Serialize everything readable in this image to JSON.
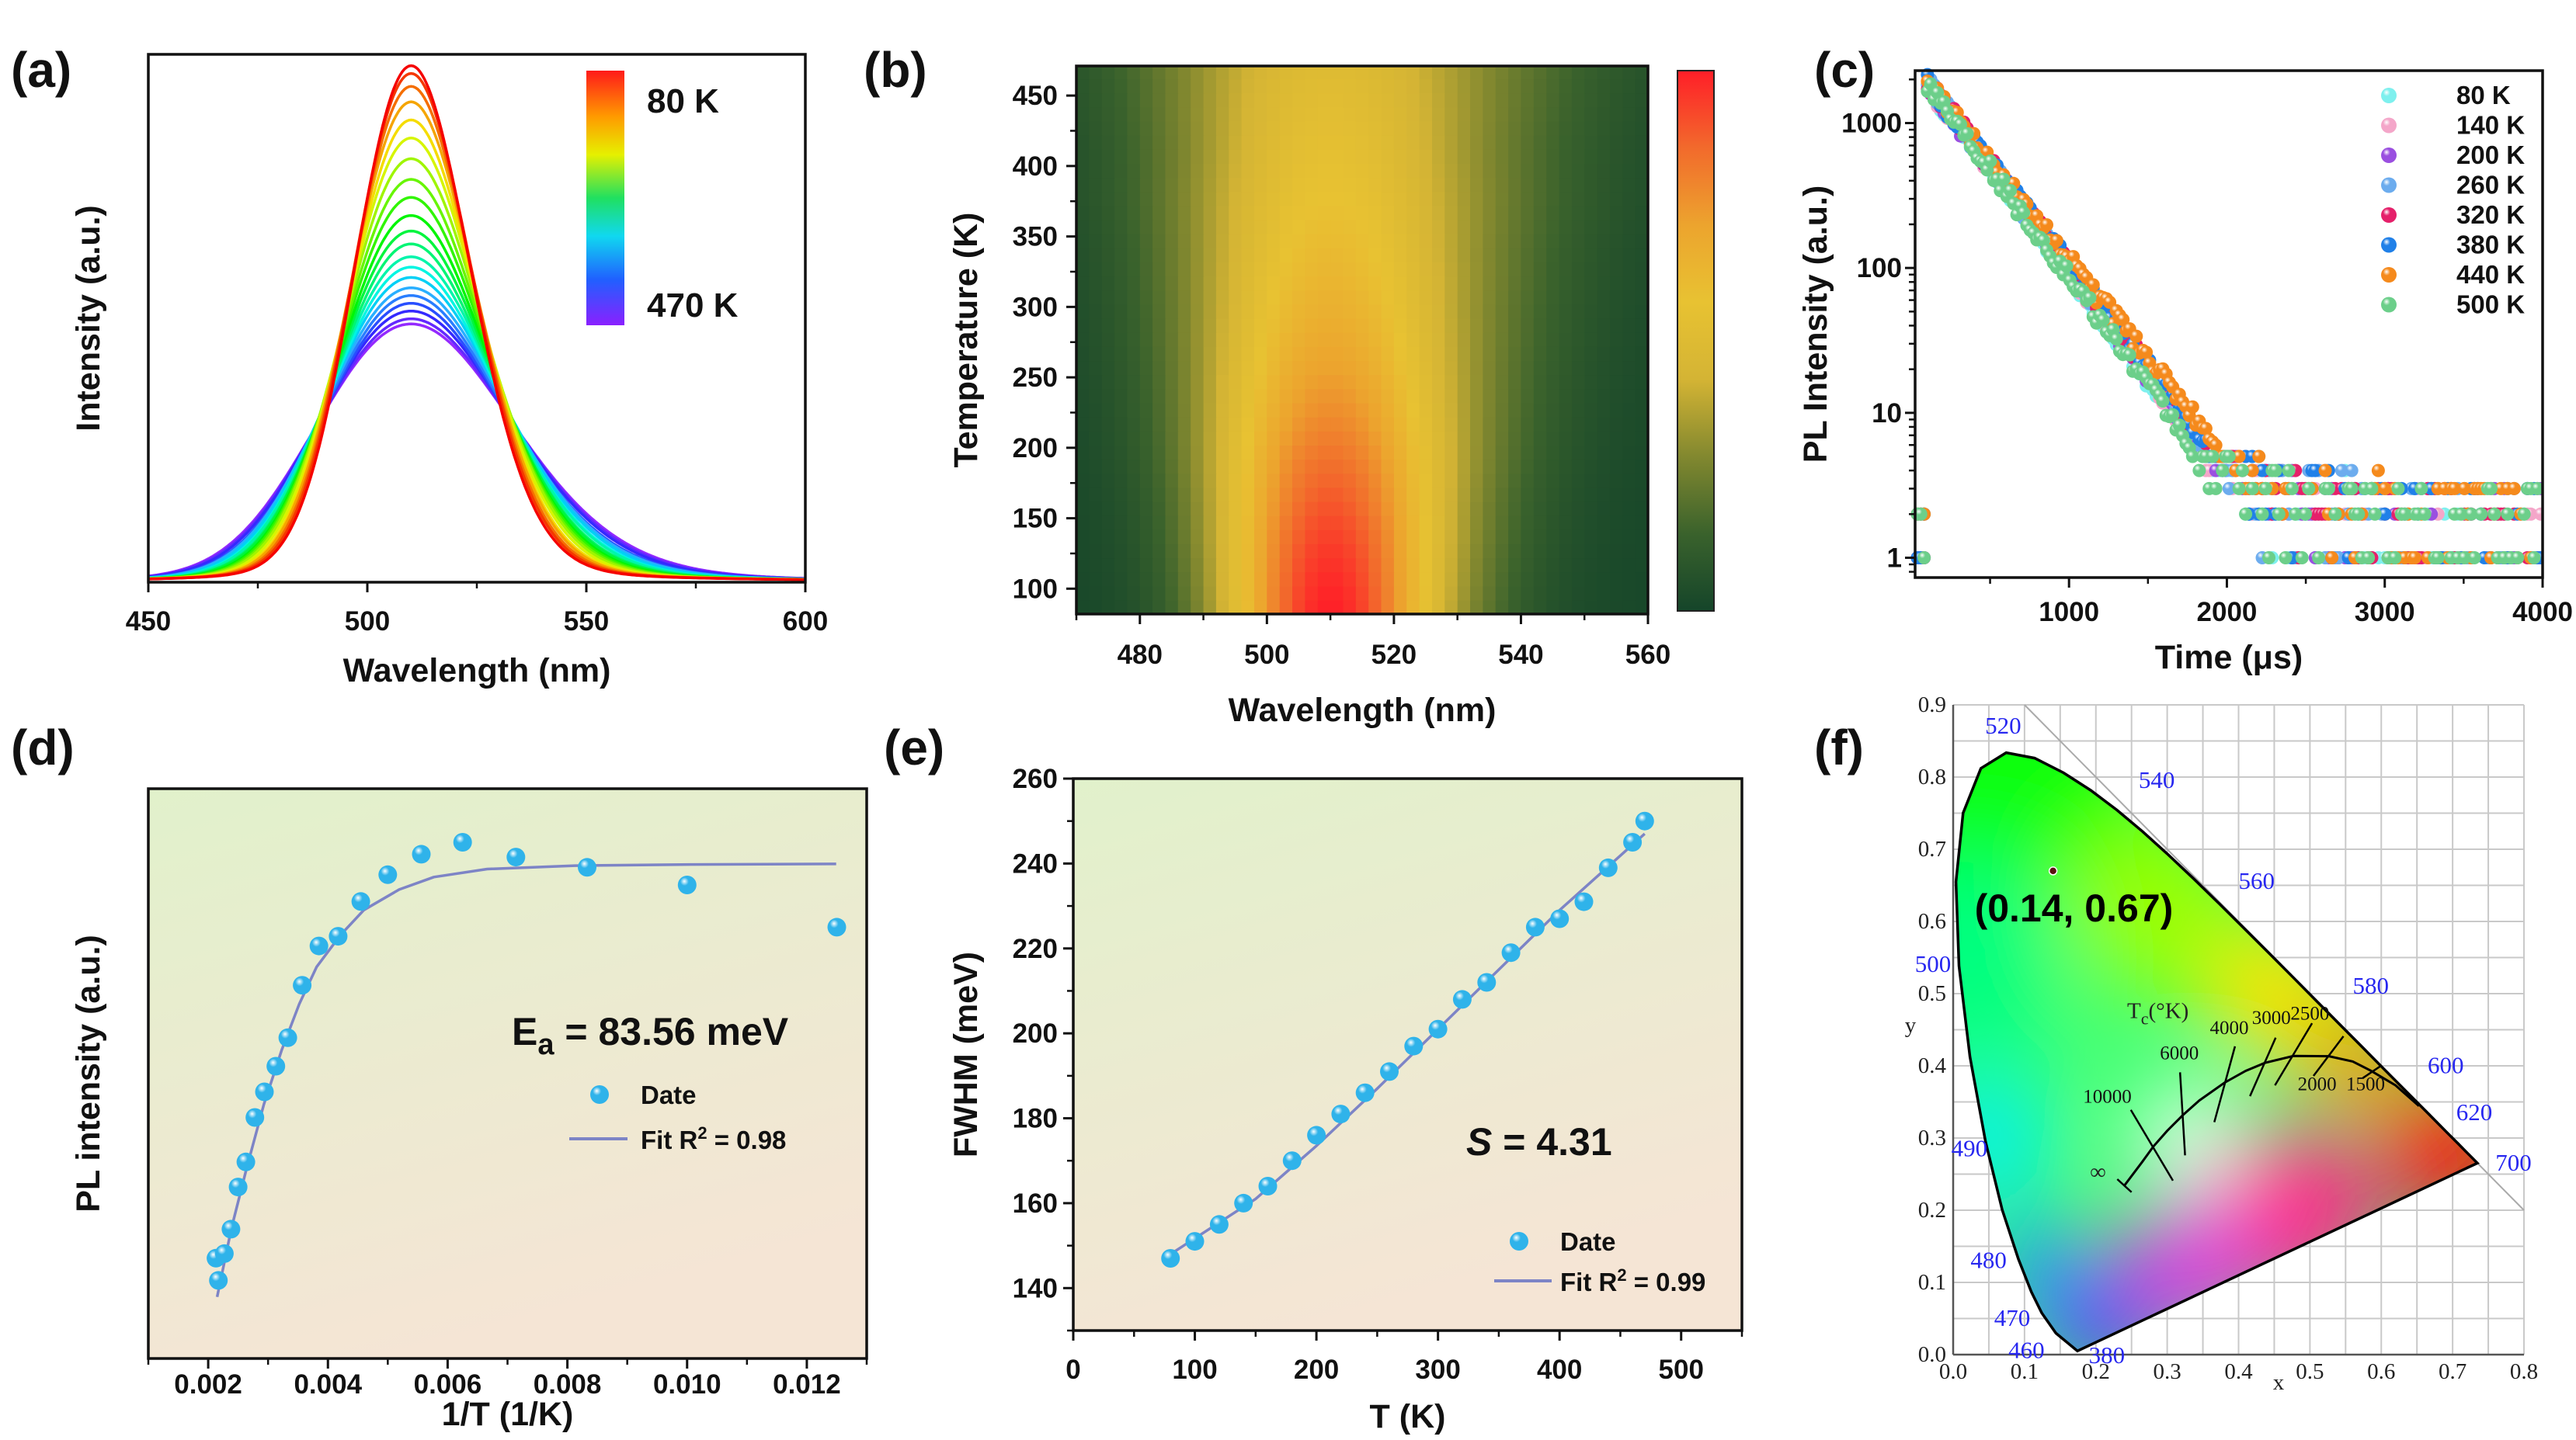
{
  "chart_data": [
    {
      "panel": "(a)",
      "type": "line",
      "xlabel": "Wavelength (nm)",
      "ylabel": "Intensity (a.u.)",
      "xlim": [
        450,
        600
      ],
      "ylim": [
        0,
        1.022
      ],
      "xtick_labels": [
        "450",
        "500",
        "550",
        "600"
      ],
      "colorbar_labels": [
        "80 K",
        "470 K"
      ],
      "center_nm": 510,
      "temperatures_K": [
        80,
        100,
        120,
        140,
        160,
        180,
        200,
        220,
        240,
        260,
        280,
        300,
        320,
        340,
        360,
        380,
        400,
        420,
        440,
        460,
        470
      ],
      "peak_intensity": [
        1.0,
        0.985,
        0.96,
        0.93,
        0.895,
        0.86,
        0.82,
        0.78,
        0.745,
        0.71,
        0.68,
        0.655,
        0.63,
        0.61,
        0.59,
        0.57,
        0.555,
        0.54,
        0.525,
        0.51,
        0.5
      ],
      "fwhm_meV": [
        147,
        151,
        155,
        160,
        164,
        170,
        176,
        181,
        186,
        191,
        197,
        201,
        208,
        212,
        219,
        225,
        227,
        231,
        239,
        245,
        250
      ]
    },
    {
      "panel": "(b)",
      "type": "heatmap",
      "xlabel": "Wavelength (nm)",
      "ylabel": "Temperature (K)",
      "xlim": [
        470,
        560
      ],
      "ylim": [
        82,
        471
      ],
      "xtick_labels": [
        "480",
        "500",
        "520",
        "540",
        "560"
      ],
      "ytick_labels": [
        "100",
        "150",
        "200",
        "250",
        "300",
        "350",
        "400",
        "450"
      ],
      "colormap": [
        "#15452a",
        "#3a622c",
        "#82882f",
        "#d4b434",
        "#e8c232",
        "#eca42e",
        "#f26a2c",
        "#ff1e28"
      ]
    },
    {
      "panel": "(c)",
      "type": "scatter",
      "xlabel": "Time (μs)",
      "ylabel": "PL Intensity (a.u.)",
      "yscale": "log",
      "xlim": [
        25,
        4000
      ],
      "ylim": [
        0.73,
        2300
      ],
      "xtick_labels": [
        "1000",
        "2000",
        "3000",
        "4000"
      ],
      "ytick_labels": [
        "1",
        "10",
        "100",
        "1000"
      ],
      "legend": "top-right",
      "series": [
        {
          "name": "80 K",
          "color": "#7ef0ee",
          "tau_us": 298,
          "amplitude": 1850
        },
        {
          "name": "140 K",
          "color": "#f4a6c9",
          "tau_us": 300,
          "amplitude": 1850
        },
        {
          "name": "200 K",
          "color": "#9a4fe0",
          "tau_us": 302,
          "amplitude": 1880
        },
        {
          "name": "260 K",
          "color": "#6cacee",
          "tau_us": 304,
          "amplitude": 1880
        },
        {
          "name": "320 K",
          "color": "#e5206a",
          "tau_us": 308,
          "amplitude": 1900
        },
        {
          "name": "380 K",
          "color": "#2080e8",
          "tau_us": 310,
          "amplitude": 1900
        },
        {
          "name": "440 K",
          "color": "#f58a1c",
          "tau_us": 318,
          "amplitude": 1920
        },
        {
          "name": "500 K",
          "color": "#6ccf8a",
          "tau_us": 290,
          "amplitude": 1900
        }
      ]
    },
    {
      "panel": "(d)",
      "type": "scatter",
      "xlabel": "1/T (1/K)",
      "ylabel": "PL intensity (a.u.)",
      "xlim": [
        0.001,
        0.013
      ],
      "ylim": [
        0,
        1
      ],
      "xtick_labels": [
        "0.002",
        "0.004",
        "0.006",
        "0.008",
        "0.010",
        "0.012"
      ],
      "x": [
        0.00213,
        0.00217,
        0.00227,
        0.00238,
        0.0025,
        0.00263,
        0.00278,
        0.00294,
        0.00313,
        0.00333,
        0.00357,
        0.00385,
        0.00417,
        0.00455,
        0.005,
        0.00556,
        0.00625,
        0.00714,
        0.00833,
        0.01,
        0.0125
      ],
      "y": [
        0.176,
        0.137,
        0.184,
        0.227,
        0.301,
        0.345,
        0.423,
        0.468,
        0.513,
        0.563,
        0.655,
        0.724,
        0.741,
        0.802,
        0.849,
        0.885,
        0.906,
        0.88,
        0.862,
        0.831,
        0.757
      ],
      "fit_x": [
        0.00215,
        0.00239,
        0.00264,
        0.00293,
        0.00323,
        0.00352,
        0.00381,
        0.00421,
        0.0046,
        0.00519,
        0.00577,
        0.00666,
        0.00813,
        0.01009,
        0.01249
      ],
      "fit_y": [
        0.108,
        0.229,
        0.333,
        0.446,
        0.542,
        0.622,
        0.687,
        0.743,
        0.787,
        0.823,
        0.845,
        0.859,
        0.865,
        0.867,
        0.868
      ],
      "annotation": {
        "main": "E",
        "sub": "a",
        "rest": " = 83.56 meV"
      },
      "legend_data": "Date",
      "legend_fit": {
        "main": "Fit R",
        "sup": "2",
        "rest": " = 0.98"
      }
    },
    {
      "panel": "(e)",
      "type": "scatter",
      "xlabel": "T (K)",
      "ylabel": "FWHM (meV)",
      "xlim": [
        0,
        550
      ],
      "ylim": [
        130,
        260
      ],
      "xtick_labels": [
        "0",
        "100",
        "200",
        "300",
        "400",
        "500"
      ],
      "ytick_labels": [
        "140",
        "160",
        "180",
        "200",
        "220",
        "240",
        "260"
      ],
      "x": [
        80,
        100,
        120,
        140,
        160,
        180,
        200,
        220,
        240,
        260,
        280,
        300,
        320,
        340,
        360,
        380,
        400,
        420,
        440,
        460,
        470
      ],
      "y": [
        147,
        151,
        155,
        160,
        164,
        170,
        176,
        181,
        186,
        191,
        197,
        201,
        208,
        212,
        219,
        225,
        227,
        231,
        239,
        245,
        250
      ],
      "fit_x": [
        80,
        150,
        200,
        250,
        300,
        350,
        400,
        470
      ],
      "fit_y": [
        148,
        161,
        173.5,
        187,
        201,
        215,
        229,
        247
      ],
      "annotation": {
        "main": "S",
        "rest": " = 4.31"
      },
      "legend_data": "Date",
      "legend_fit": {
        "main": "Fit R",
        "sup": "2",
        "rest": " = 0.99"
      }
    },
    {
      "panel": "(f)",
      "type": "scatter",
      "xlabel": "x",
      "ylabel": "y",
      "xlim": [
        0,
        0.8
      ],
      "ylim": [
        0,
        0.9
      ],
      "grid": true,
      "xtick_labels": [
        "0.0",
        "0.1",
        "0.2",
        "0.3",
        "0.4",
        "0.5",
        "0.6",
        "0.7",
        "0.8"
      ],
      "ytick_labels": [
        "0.0",
        "0.1",
        "0.2",
        "0.3",
        "0.4",
        "0.5",
        "0.6",
        "0.7",
        "0.8",
        "0.9"
      ],
      "point": [
        0.14,
        0.67
      ],
      "point_label": "(0.14, 0.67)",
      "wavelength_labels": [
        "380",
        "460",
        "470",
        "480",
        "490",
        "500",
        "520",
        "540",
        "560",
        "580",
        "600",
        "620",
        "700"
      ],
      "spectral_locus": {
        "x": [
          0.1741,
          0.144,
          0.1241,
          0.1096,
          0.0913,
          0.0687,
          0.0454,
          0.0235,
          0.0082,
          0.0039,
          0.0139,
          0.0389,
          0.0743,
          0.1142,
          0.1547,
          0.1929,
          0.2296,
          0.2658,
          0.3016,
          0.3373,
          0.3731,
          0.4087,
          0.4441,
          0.4788,
          0.5125,
          0.5448,
          0.5752,
          0.6029,
          0.627,
          0.6658,
          0.6915,
          0.7079,
          0.719,
          0.726,
          0.7347
        ],
        "y": [
          0.005,
          0.0297,
          0.0578,
          0.0868,
          0.1327,
          0.2007,
          0.295,
          0.4127,
          0.5384,
          0.6548,
          0.7502,
          0.812,
          0.8338,
          0.8262,
          0.8059,
          0.7816,
          0.7543,
          0.7243,
          0.6923,
          0.6589,
          0.6245,
          0.5896,
          0.5547,
          0.5202,
          0.4866,
          0.4544,
          0.4242,
          0.3965,
          0.3725,
          0.334,
          0.3083,
          0.292,
          0.2809,
          0.274,
          0.2653
        ]
      },
      "planckian_locus": {
        "x": [
          0.2399,
          0.265,
          0.2807,
          0.3,
          0.3221,
          0.345,
          0.3805,
          0.41,
          0.4369,
          0.477,
          0.5267,
          0.56,
          0.5857,
          0.62,
          0.6528
        ],
        "y": [
          0.2341,
          0.267,
          0.2884,
          0.31,
          0.3318,
          0.352,
          0.3768,
          0.393,
          0.4041,
          0.4137,
          0.4133,
          0.406,
          0.3931,
          0.373,
          0.3444
        ]
      },
      "cct_labels": [
        "10000",
        "6000",
        "4000",
        "3000",
        "2500",
        "2000",
        "1500"
      ],
      "cct_title": {
        "main": "T",
        "sub": "c",
        "rest": "(°K)"
      },
      "infinity_label": "∞"
    }
  ]
}
